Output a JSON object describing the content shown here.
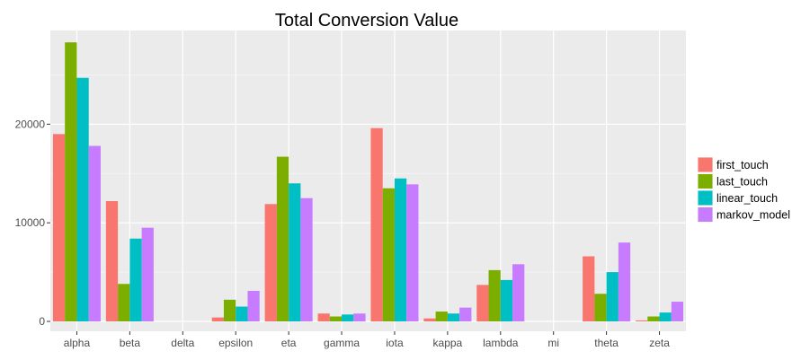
{
  "chart_data": {
    "type": "bar",
    "title": "Total Conversion Value",
    "xlabel": "",
    "ylabel": "",
    "categories": [
      "alpha",
      "beta",
      "delta",
      "epsilon",
      "eta",
      "gamma",
      "iota",
      "kappa",
      "lambda",
      "mi",
      "theta",
      "zeta"
    ],
    "ylim": [
      -1000,
      29500
    ],
    "yticks": [
      0,
      10000,
      20000
    ],
    "ytick_labels": [
      "0",
      "10000",
      "20000"
    ],
    "grid": true,
    "legend_position": "right",
    "series": [
      {
        "name": "first_touch",
        "color": "#F8766D",
        "values": [
          19000,
          12200,
          0,
          400,
          11900,
          800,
          19600,
          300,
          3700,
          0,
          6600,
          100
        ]
      },
      {
        "name": "last_touch",
        "color": "#7CAE00",
        "values": [
          28300,
          3800,
          0,
          2200,
          16700,
          500,
          13500,
          1000,
          5200,
          0,
          2800,
          500
        ]
      },
      {
        "name": "linear_touch",
        "color": "#00BFC4",
        "values": [
          24700,
          8400,
          0,
          1500,
          14000,
          700,
          14500,
          800,
          4200,
          0,
          5000,
          900
        ]
      },
      {
        "name": "markov_model",
        "color": "#C77CFF",
        "values": [
          17800,
          9500,
          0,
          3100,
          12500,
          800,
          13900,
          1400,
          5800,
          0,
          8000,
          2000
        ]
      }
    ]
  }
}
